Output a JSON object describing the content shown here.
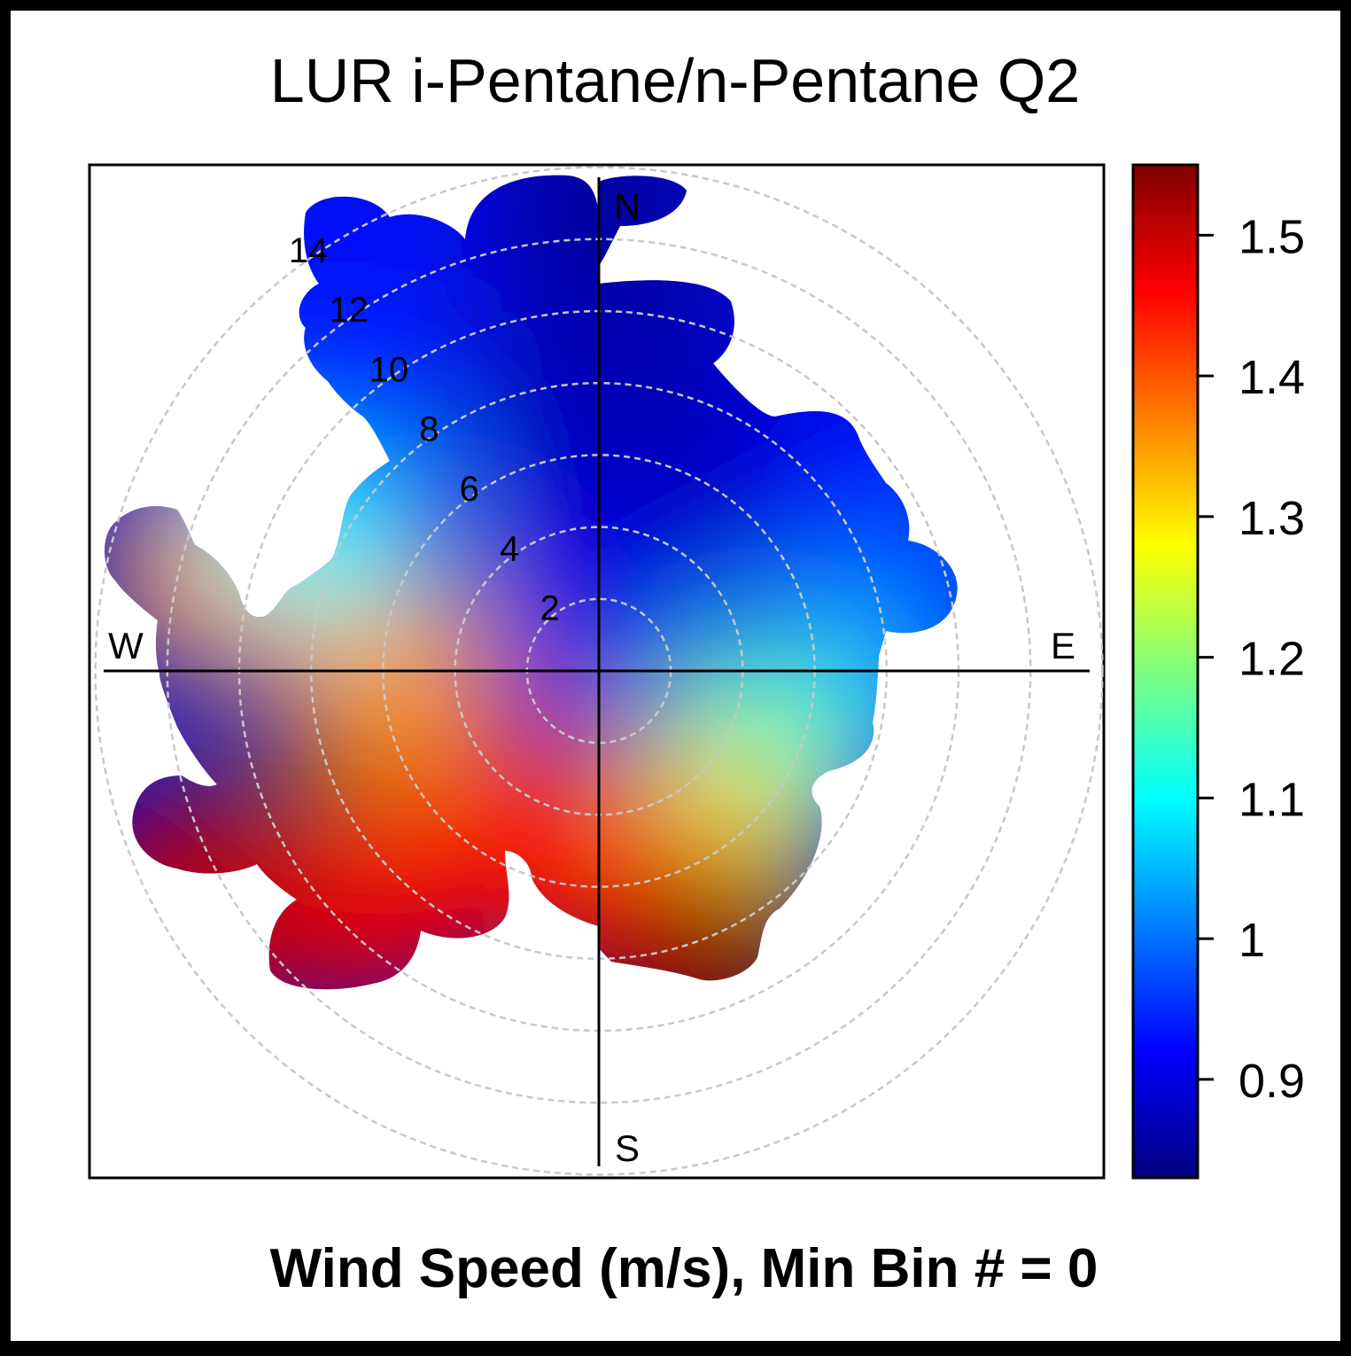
{
  "chart_data": {
    "type": "heatmap",
    "subtype": "polar-plot",
    "title": "LUR i-Pentane/n-Pentane Q2",
    "xlabel": "Wind Speed (m/s), Min Bin # = 0",
    "directions": [
      "N",
      "E",
      "S",
      "W"
    ],
    "radial_axis": {
      "quantity": "wind speed",
      "unit": "m/s",
      "ticks": [
        2,
        4,
        6,
        8,
        10,
        12,
        14
      ],
      "max": 14,
      "grid": "dashed grey circles"
    },
    "colorbar": {
      "min": 0.83,
      "max": 1.55,
      "ticks": [
        0.9,
        1,
        1.1,
        1.2,
        1.3,
        1.4,
        1.5
      ],
      "tick_labels": [
        "0.9",
        "1",
        "1.1",
        "1.2",
        "1.3",
        "1.4",
        "1.5"
      ],
      "palette": [
        "#00007f",
        "#0000ff",
        "#007fff",
        "#00ffff",
        "#7fff7f",
        "#ffff00",
        "#ff7f00",
        "#ff0000",
        "#7f0000"
      ]
    },
    "surface": [
      {
        "direction_deg": 0,
        "speed": 2,
        "value": 0.9
      },
      {
        "direction_deg": 0,
        "speed": 8,
        "value": 0.87
      },
      {
        "direction_deg": 0,
        "speed": 13,
        "value": 0.85
      },
      {
        "direction_deg": 30,
        "speed": 8,
        "value": 0.86
      },
      {
        "direction_deg": 45,
        "speed": 10,
        "value": 0.9
      },
      {
        "direction_deg": 60,
        "speed": 9,
        "value": 0.93
      },
      {
        "direction_deg": 80,
        "speed": 9,
        "value": 0.98
      },
      {
        "direction_deg": 100,
        "speed": 6,
        "value": 1.05
      },
      {
        "direction_deg": 120,
        "speed": 5,
        "value": 1.15
      },
      {
        "direction_deg": 150,
        "speed": 6,
        "value": 1.3
      },
      {
        "direction_deg": 165,
        "speed": 8,
        "value": 1.45
      },
      {
        "direction_deg": 160,
        "speed": 9,
        "value": 1.55
      },
      {
        "direction_deg": 200,
        "speed": 5,
        "value": 1.45
      },
      {
        "direction_deg": 225,
        "speed": 9,
        "value": 1.47
      },
      {
        "direction_deg": 240,
        "speed": 13,
        "value": 1.5
      },
      {
        "direction_deg": 270,
        "speed": 6,
        "value": 1.35
      },
      {
        "direction_deg": 285,
        "speed": 11,
        "value": 1.35
      },
      {
        "direction_deg": 300,
        "speed": 9,
        "value": 1.1
      },
      {
        "direction_deg": 320,
        "speed": 11,
        "value": 0.95
      },
      {
        "direction_deg": 330,
        "speed": 14,
        "value": 0.93
      }
    ]
  }
}
